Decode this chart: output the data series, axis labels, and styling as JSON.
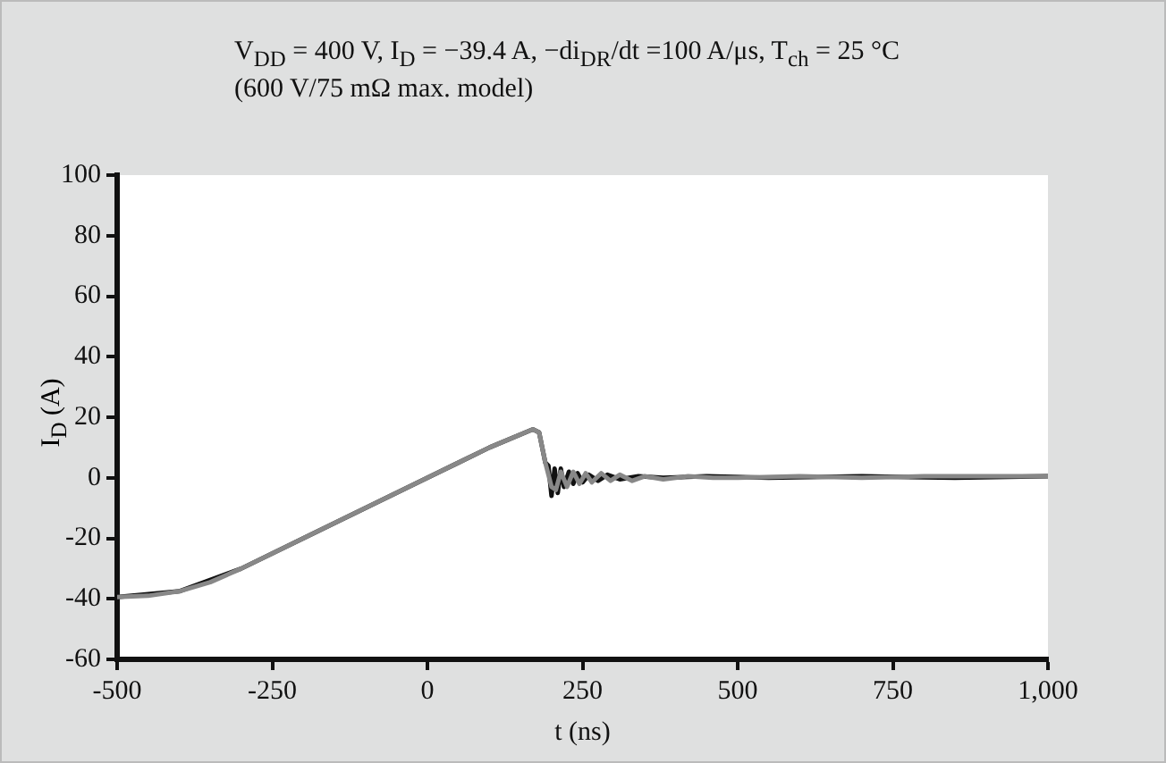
{
  "chart_data": {
    "type": "line",
    "title": "V$_{DD}$ = 400 V, I$_{D}$ = −39.4 A, −di$_{DR}$/dt =100 A/μs, T$_{ch}$ = 25 °C",
    "subtitle": "(600 V/75 mΩ max. model)",
    "xlabel": "t (ns)",
    "ylabel": "I$_{D}$ (A)",
    "xlim": [
      -500,
      1000
    ],
    "ylim": [
      -60,
      100
    ],
    "xticks": [
      -500,
      -250,
      0,
      250,
      500,
      750,
      {
        "value": 1000,
        "label": "1,000"
      }
    ],
    "yticks": [
      -60,
      -40,
      -20,
      0,
      20,
      40,
      60,
      80,
      100
    ],
    "grid": false,
    "legend": false,
    "marker": "none",
    "line_style": "solid",
    "series": [
      {
        "color": "#888888",
        "x": [
          -500,
          -450,
          -400,
          -350,
          -300,
          -250,
          -150,
          0,
          100,
          170,
          180,
          190,
          200,
          207,
          215,
          225,
          235,
          245,
          255,
          265,
          280,
          295,
          310,
          330,
          350,
          380,
          420,
          460,
          500,
          600,
          700,
          800,
          900,
          1000
        ],
        "values": [
          -39.4,
          -39,
          -37.5,
          -34.5,
          -30,
          -25,
          -15,
          0,
          10,
          16,
          15,
          5,
          -3,
          -4,
          2,
          -3,
          2,
          -2,
          1.5,
          -1.5,
          1.5,
          -1,
          1,
          -1,
          0.5,
          -0.5,
          0.5,
          0,
          0,
          0.5,
          0,
          0.5,
          0.5,
          0.5
        ]
      },
      {
        "color": "#111111",
        "x": [
          -500,
          -400,
          -300,
          -200,
          0,
          100,
          170,
          180,
          190,
          195,
          200,
          205,
          210,
          215,
          220,
          228,
          235,
          242,
          250,
          260,
          275,
          290,
          310,
          340,
          380,
          450,
          550,
          700,
          850,
          1000
        ],
        "values": [
          -39.4,
          -37.5,
          -30,
          -20,
          0,
          10,
          16,
          15,
          5,
          4,
          -6,
          3,
          -5,
          3,
          -3,
          2,
          -2,
          1.5,
          -1.5,
          1,
          -1,
          1,
          -0.5,
          0.5,
          0,
          0.5,
          0,
          0.5,
          0,
          0.5
        ]
      }
    ]
  }
}
